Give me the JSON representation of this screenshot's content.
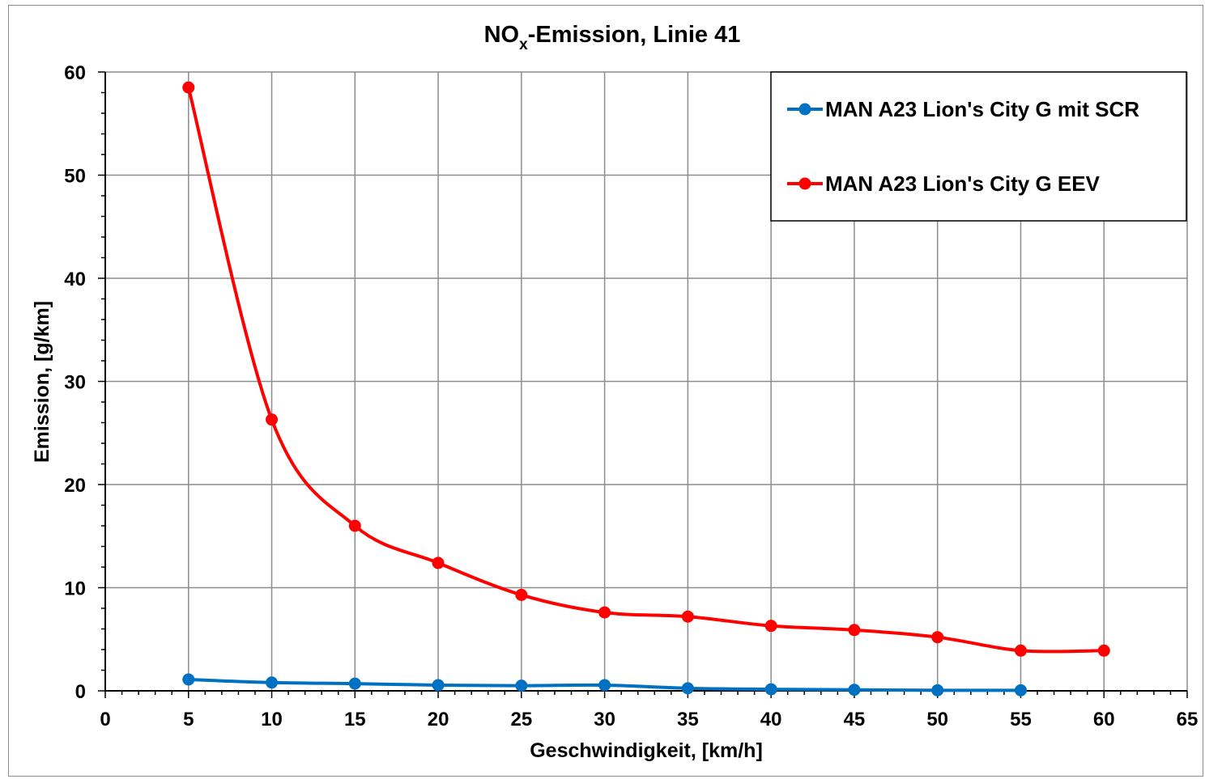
{
  "chart_data": {
    "type": "line",
    "title": {
      "main": "NO",
      "subscript": "x",
      "rest": "-Emission,  Linie  41"
    },
    "xlabel": "Geschwindigkeit, [km/h]",
    "ylabel": "Emission, [g/km]",
    "xlim": [
      0,
      65
    ],
    "ylim": [
      0,
      60
    ],
    "xticks": [
      0,
      5,
      10,
      15,
      20,
      25,
      30,
      35,
      40,
      45,
      50,
      55,
      60,
      65
    ],
    "yticks": [
      0,
      10,
      20,
      30,
      40,
      50,
      60
    ],
    "grid": true,
    "smooth": true,
    "legend_position": "top-right",
    "series": [
      {
        "name": "MAN A23 Lion's City G mit SCR",
        "color": "#0070c0",
        "x": [
          5,
          10,
          15,
          20,
          25,
          30,
          35,
          40,
          45,
          50,
          55
        ],
        "y": [
          1.1,
          0.8,
          0.7,
          0.55,
          0.5,
          0.55,
          0.25,
          0.15,
          0.1,
          0.05,
          0.05
        ]
      },
      {
        "name": "MAN A23 Lion's City G EEV",
        "color": "#ff0000",
        "x": [
          5,
          10,
          15,
          20,
          25,
          30,
          35,
          40,
          45,
          50,
          55,
          60
        ],
        "y": [
          58.5,
          26.3,
          16.0,
          12.4,
          9.3,
          7.6,
          7.2,
          6.3,
          5.9,
          5.2,
          3.9,
          3.9
        ]
      }
    ]
  }
}
